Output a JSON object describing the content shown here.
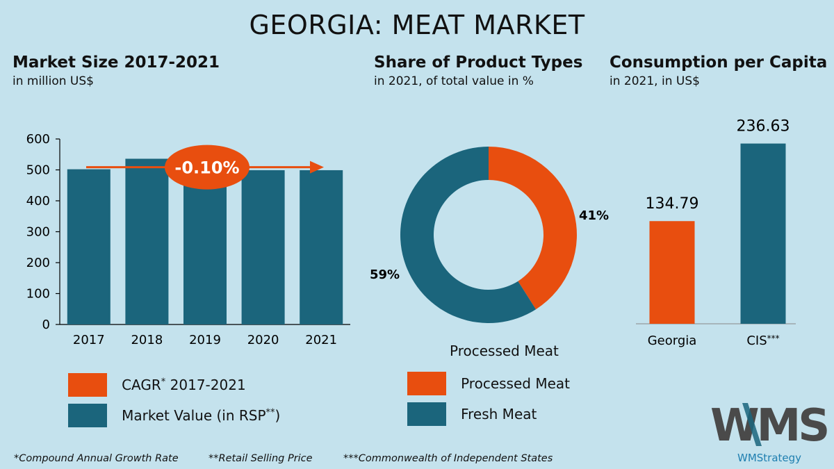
{
  "title": "GEORGIA: MEAT MARKET",
  "colors": {
    "background": "#c4e2ed",
    "orange": "#e84e0f",
    "teal": "#1b657c"
  },
  "panels": {
    "market_size": {
      "title": "Market Size 2017-2021",
      "subtitle": "in million US$"
    },
    "share": {
      "title": "Share of Product Types",
      "subtitle": "in 2021, of total value in %",
      "under_label": "Processed Meat"
    },
    "consumption": {
      "title": "Consumption per Capita",
      "subtitle": "in 2021, in US$"
    }
  },
  "chart_data": [
    {
      "type": "bar",
      "categories": [
        "2017",
        "2018",
        "2019",
        "2020",
        "2021"
      ],
      "values": [
        502,
        536,
        493,
        499,
        499
      ],
      "ylim": [
        0,
        600
      ],
      "yticks": [
        0,
        100,
        200,
        300,
        400,
        500,
        600
      ],
      "color": "#1b657c",
      "annotation": {
        "text": "-0.10%",
        "color": "#e84e0f"
      }
    },
    {
      "type": "pie",
      "labels": [
        "Processed Meat",
        "Fresh Meat"
      ],
      "values": [
        41,
        59
      ],
      "value_labels": [
        "41%",
        "59%"
      ],
      "colors": [
        "#e84e0f",
        "#1b657c"
      ]
    },
    {
      "type": "bar",
      "categories": [
        "Georgia",
        "CIS"
      ],
      "category_suffix": [
        "",
        "***"
      ],
      "values": [
        134.79,
        236.63
      ],
      "value_labels": [
        "134.79",
        "236.63"
      ],
      "ylim": [
        0,
        270
      ],
      "colors": [
        "#e84e0f",
        "#1b657c"
      ]
    }
  ],
  "legend_left": [
    {
      "label": "CAGR",
      "sup": "*",
      "rest": " 2017-2021",
      "color": "#e84e0f"
    },
    {
      "label": "Market Value (in RSP",
      "sup": "**",
      "rest": ")",
      "color": "#1b657c"
    }
  ],
  "legend_mid": [
    {
      "label": "Processed Meat",
      "color": "#e84e0f"
    },
    {
      "label": "Fresh Meat",
      "color": "#1b657c"
    }
  ],
  "footnotes": [
    "*Compound Annual Growth Rate",
    "**Retail Selling Price",
    "***Commonwealth of Independent States"
  ],
  "logo": {
    "text": "WMS",
    "caption": "WMStrategy"
  }
}
